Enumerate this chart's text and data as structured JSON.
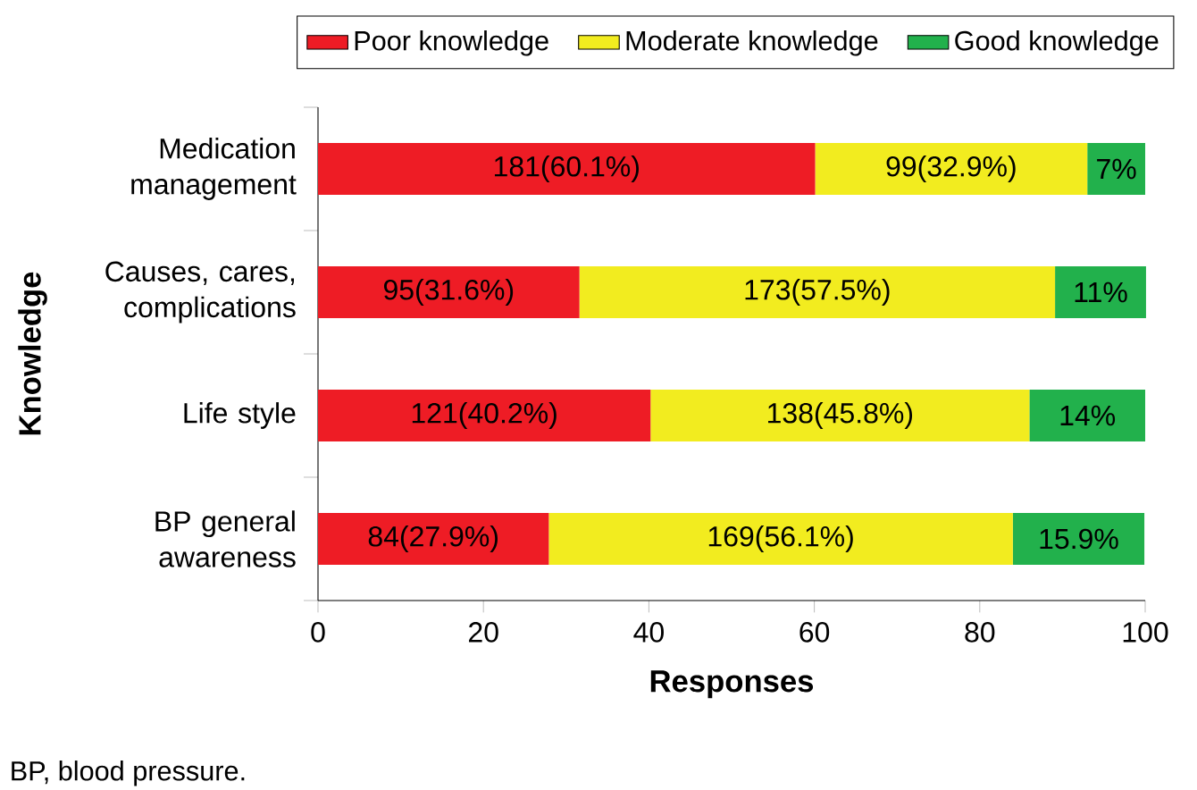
{
  "chart_data": {
    "type": "bar",
    "orientation": "horizontal",
    "stacked": true,
    "xlabel": "Responses",
    "ylabel": "Knowledge",
    "categories": [
      "Medication management",
      "Causes, cares, complications",
      "Life style",
      "BP general awareness"
    ],
    "series": [
      {
        "name": "Poor knowledge",
        "color": "#ee1c25",
        "values": [
          60.1,
          31.6,
          40.2,
          27.9
        ],
        "value_labels": [
          "181(60.1%)",
          "95(31.6%)",
          "121(40.2%)",
          "84(27.9%)"
        ]
      },
      {
        "name": "Moderate knowledge",
        "color": "#f2ec1f",
        "values": [
          32.9,
          57.5,
          45.8,
          56.1
        ],
        "value_labels": [
          "99(32.9%)",
          "173(57.5%)",
          "138(45.8%)",
          "169(56.1%)"
        ]
      },
      {
        "name": "Good knowledge",
        "color": "#22b14c",
        "values": [
          7,
          11,
          14,
          15.9
        ],
        "value_labels": [
          "7%",
          "11%",
          "14%",
          "15.9%"
        ]
      }
    ],
    "xlim": [
      0,
      100
    ],
    "xticks": [
      0,
      20,
      40,
      60,
      80,
      100
    ],
    "grid": false,
    "legend": "top",
    "annotations": [
      "BP, blood pressure."
    ]
  }
}
